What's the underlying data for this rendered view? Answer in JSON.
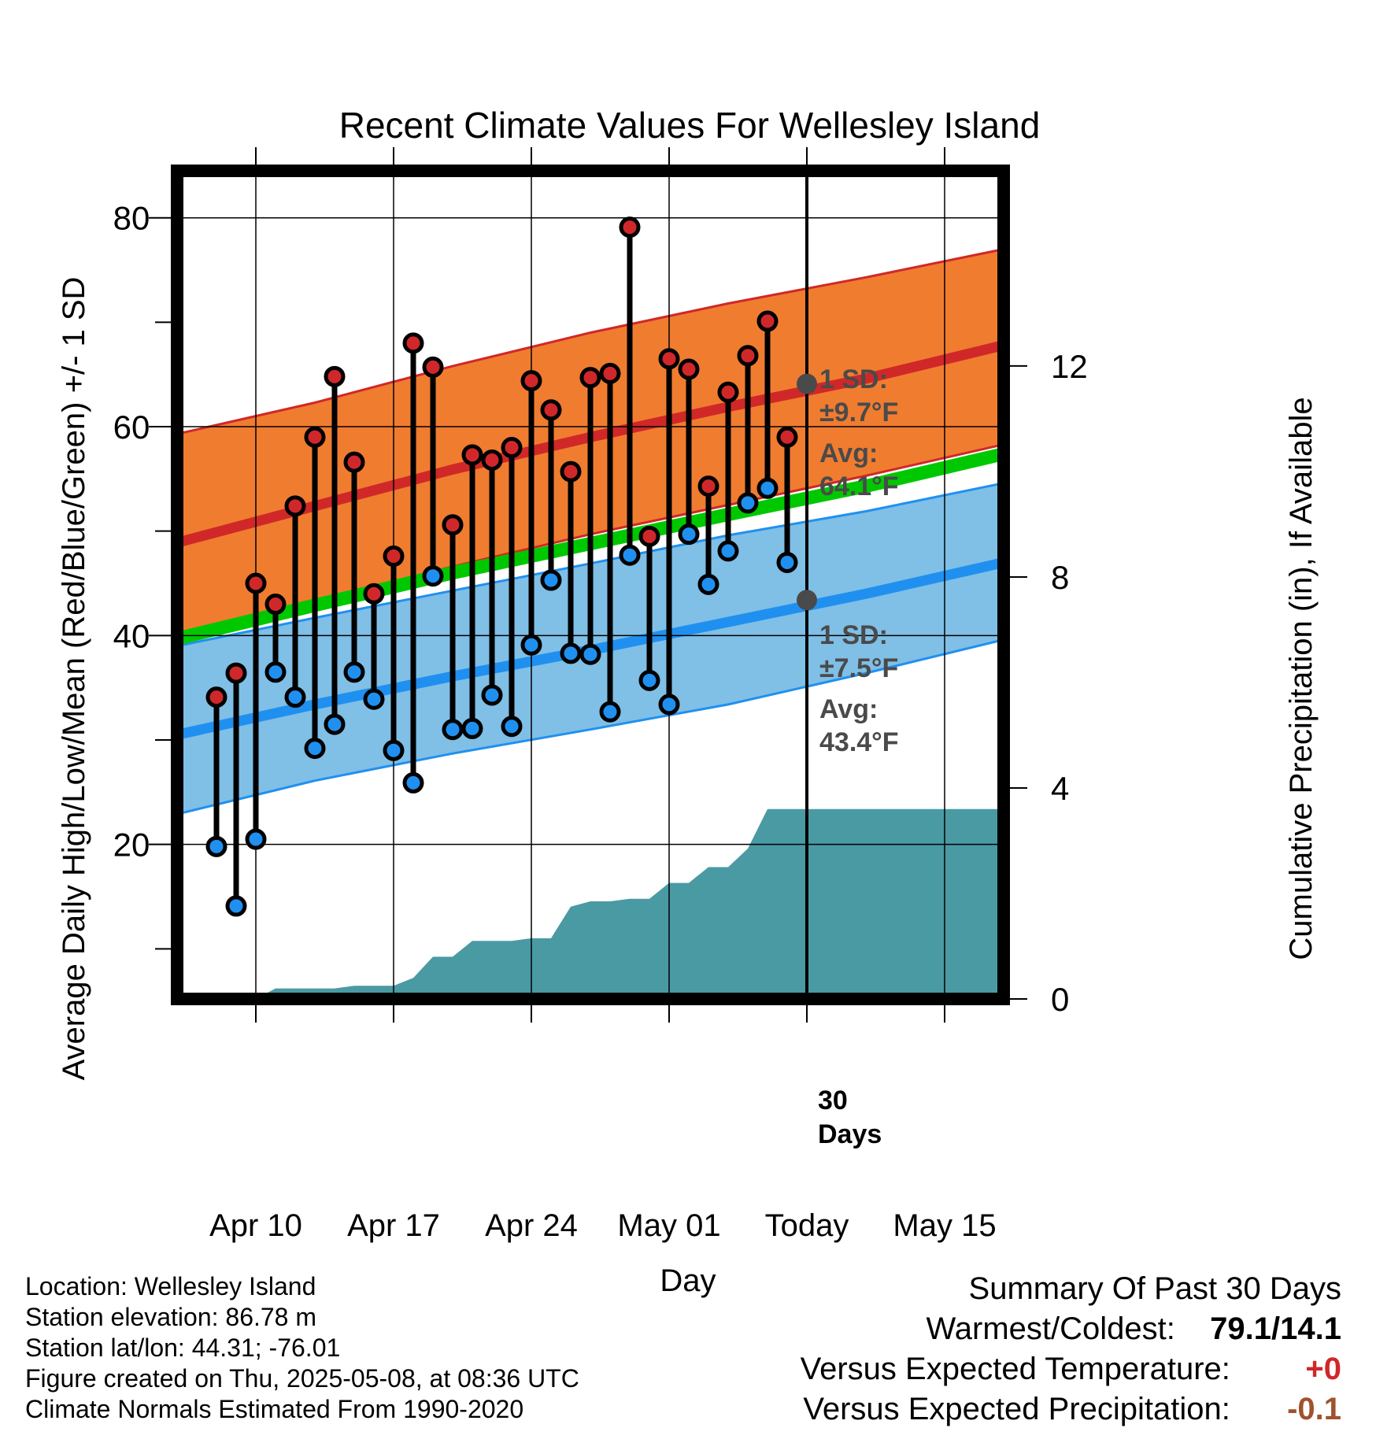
{
  "chart_data": {
    "type": "line",
    "title": "Recent Climate Values For Wellesley Island",
    "xlabel": "Day",
    "ylabel": "Average Daily High/Low/Mean (Red/Blue/Green) +/- 1 SD",
    "y2label": "Cumulative Precipitation (in), If Available",
    "ylim": [
      5.2,
      84.5
    ],
    "y_ticks": [
      "20",
      "40",
      "60",
      "80"
    ],
    "y2lim": [
      0,
      15.7
    ],
    "y2_ticks": [
      "0",
      "4",
      "8",
      "12"
    ],
    "x_ticks": [
      "Apr 10",
      "Apr 17",
      "Apr 24",
      "May 01",
      "Today",
      "May 15"
    ],
    "x_range_days": [
      "Apr 06",
      "May 18"
    ],
    "today": "May 08",
    "grid": true,
    "days": [
      "Apr 08",
      "Apr 09",
      "Apr 10",
      "Apr 11",
      "Apr 12",
      "Apr 13",
      "Apr 14",
      "Apr 15",
      "Apr 16",
      "Apr 17",
      "Apr 18",
      "Apr 19",
      "Apr 20",
      "Apr 21",
      "Apr 22",
      "Apr 23",
      "Apr 24",
      "Apr 25",
      "Apr 26",
      "Apr 27",
      "Apr 28",
      "Apr 29",
      "Apr 30",
      "May 01",
      "May 02",
      "May 03",
      "May 04",
      "May 05",
      "May 06",
      "May 07"
    ],
    "observed_high": [
      34.1,
      36.4,
      45.0,
      43.0,
      52.4,
      59.0,
      64.8,
      56.6,
      44.0,
      47.6,
      68.0,
      65.7,
      50.6,
      57.3,
      56.8,
      58.0,
      64.4,
      61.6,
      55.7,
      64.7,
      65.1,
      79.1,
      49.5,
      66.5,
      65.5,
      54.3,
      63.3,
      66.8,
      70.1,
      59.0
    ],
    "observed_low": [
      19.8,
      14.1,
      20.5,
      36.5,
      34.1,
      29.2,
      31.5,
      36.5,
      33.9,
      29.0,
      25.9,
      45.7,
      31.0,
      31.1,
      34.3,
      31.3,
      39.1,
      45.3,
      38.3,
      38.2,
      32.7,
      47.7,
      35.7,
      33.4,
      49.7,
      44.9,
      48.1,
      52.7,
      54.1,
      47.0
    ],
    "normal_high": {
      "x": [
        "Apr 06",
        "Apr 13",
        "Apr 20",
        "Apr 27",
        "May 04",
        "May 11",
        "May 18"
      ],
      "mean": [
        48.9,
        52.4,
        55.9,
        59.0,
        61.9,
        64.6,
        67.8
      ],
      "upper": [
        59.3,
        62.3,
        65.8,
        69.0,
        71.8,
        74.3,
        77.0
      ],
      "lower": [
        39.3,
        43.3,
        46.6,
        49.7,
        52.5,
        55.3,
        58.3
      ]
    },
    "normal_low": {
      "x": [
        "Apr 06",
        "Apr 13",
        "Apr 20",
        "Apr 27",
        "May 04",
        "May 11",
        "May 18"
      ],
      "mean": [
        30.5,
        33.4,
        36.1,
        38.6,
        41.3,
        44.0,
        47.0
      ],
      "upper": [
        39.0,
        41.7,
        44.3,
        46.9,
        49.6,
        51.9,
        54.6
      ],
      "lower": [
        22.9,
        26.1,
        28.7,
        31.0,
        33.4,
        36.4,
        39.6
      ]
    },
    "normal_mean": {
      "x": [
        "Apr 06",
        "Apr 13",
        "Apr 20",
        "Apr 27",
        "May 04",
        "May 11",
        "May 18"
      ],
      "values": [
        39.7,
        42.9,
        46.0,
        48.8,
        51.6,
        54.3,
        57.4
      ]
    },
    "cumulative_precip": {
      "x": [
        "Apr 10",
        "Apr 11",
        "Apr 13",
        "Apr 14",
        "Apr 15",
        "Apr 16",
        "Apr 17",
        "Apr 18",
        "Apr 19",
        "Apr 20",
        "Apr 21",
        "Apr 22",
        "Apr 23",
        "Apr 24",
        "Apr 25",
        "Apr 26",
        "Apr 27",
        "Apr 28",
        "Apr 29",
        "Apr 30",
        "May 01",
        "May 02",
        "May 03",
        "May 04",
        "May 05",
        "May 06",
        "May 07",
        "May 18"
      ],
      "values": [
        0.0,
        0.2,
        0.2,
        0.2,
        0.25,
        0.25,
        0.25,
        0.4,
        0.8,
        0.8,
        1.1,
        1.1,
        1.1,
        1.15,
        1.15,
        1.75,
        1.85,
        1.85,
        1.9,
        1.9,
        2.2,
        2.2,
        2.5,
        2.5,
        2.85,
        3.6,
        3.6,
        3.6
      ]
    },
    "annotations": {
      "high_sd_label": "1 SD:",
      "high_sd_value": "±9.7°F",
      "high_avg_label": "Avg:",
      "high_avg_value": "64.1°F",
      "high_avg": 64.1,
      "low_sd_label": "1 SD:",
      "low_sd_value": "±7.5°F",
      "low_avg_label": "Avg:",
      "low_avg_value": "43.4°F",
      "low_avg": 43.4,
      "days_label_1": "30",
      "days_label_2": "Days"
    },
    "colors": {
      "high_band": "#f07c30",
      "high_line": "#d02828",
      "low_band": "#80bfe6",
      "low_line": "#2090f0",
      "mean_line": "#00c800",
      "precip": "#4a9aa4",
      "high_marker": "#d0282a",
      "low_marker": "#2090f0",
      "annotation": "#4a4a4a"
    }
  },
  "footer": {
    "location": "Location: Wellesley Island",
    "elevation": "Station elevation: 86.78 m",
    "latlon": "Station lat/lon: 44.31; -76.01",
    "created": "Figure created on Thu, 2025-05-08, at 08:36 UTC",
    "normals": "Climate Normals Estimated From 1990-2020"
  },
  "summary": {
    "title": "Summary Of Past 30 Days",
    "warm_cold_label": "Warmest/Coldest:",
    "warm_cold_value": "79.1/14.1",
    "temp_label": "Versus Expected Temperature:",
    "temp_value": "+0",
    "temp_color": "#d02828",
    "precip_label": "Versus Expected Precipitation:",
    "precip_value": "-0.1",
    "precip_color": "#a0522d"
  }
}
